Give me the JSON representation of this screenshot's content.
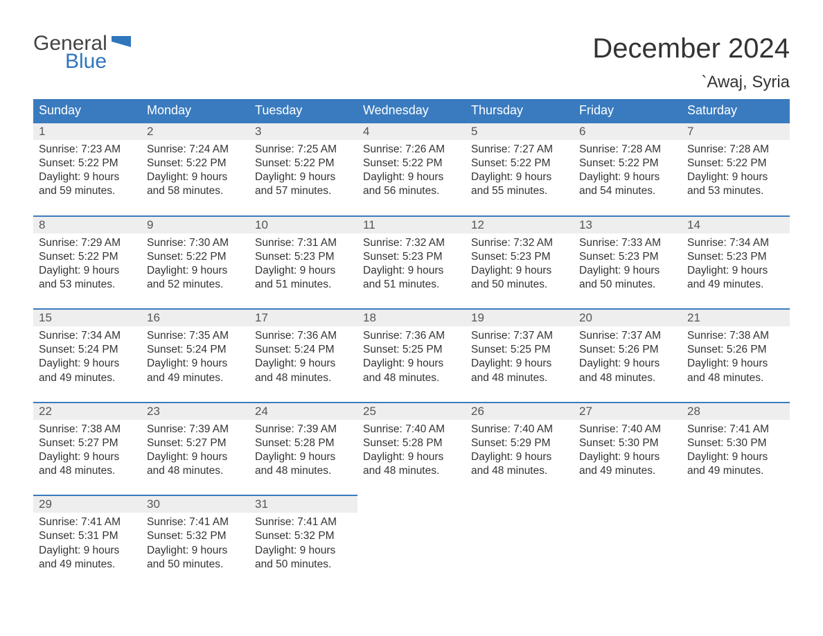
{
  "logo": {
    "line1": "General",
    "line2": "Blue",
    "shape_color": "#2f76bb",
    "text_gray": "#444444"
  },
  "title": "December 2024",
  "location": "`Awaj, Syria",
  "colors": {
    "header_bg": "#3a7bbf",
    "header_text": "#ffffff",
    "daynum_bg": "#eeeeee",
    "daynum_border": "#3a7bbf",
    "body_text": "#333333",
    "page_bg": "#ffffff"
  },
  "font": {
    "family": "Arial",
    "title_size": 40,
    "location_size": 24,
    "header_size": 18,
    "cell_size": 15.5
  },
  "weekdays": [
    "Sunday",
    "Monday",
    "Tuesday",
    "Wednesday",
    "Thursday",
    "Friday",
    "Saturday"
  ],
  "weeks": [
    [
      {
        "n": "1",
        "sr": "Sunrise: 7:23 AM",
        "ss": "Sunset: 5:22 PM",
        "d1": "Daylight: 9 hours",
        "d2": "and 59 minutes."
      },
      {
        "n": "2",
        "sr": "Sunrise: 7:24 AM",
        "ss": "Sunset: 5:22 PM",
        "d1": "Daylight: 9 hours",
        "d2": "and 58 minutes."
      },
      {
        "n": "3",
        "sr": "Sunrise: 7:25 AM",
        "ss": "Sunset: 5:22 PM",
        "d1": "Daylight: 9 hours",
        "d2": "and 57 minutes."
      },
      {
        "n": "4",
        "sr": "Sunrise: 7:26 AM",
        "ss": "Sunset: 5:22 PM",
        "d1": "Daylight: 9 hours",
        "d2": "and 56 minutes."
      },
      {
        "n": "5",
        "sr": "Sunrise: 7:27 AM",
        "ss": "Sunset: 5:22 PM",
        "d1": "Daylight: 9 hours",
        "d2": "and 55 minutes."
      },
      {
        "n": "6",
        "sr": "Sunrise: 7:28 AM",
        "ss": "Sunset: 5:22 PM",
        "d1": "Daylight: 9 hours",
        "d2": "and 54 minutes."
      },
      {
        "n": "7",
        "sr": "Sunrise: 7:28 AM",
        "ss": "Sunset: 5:22 PM",
        "d1": "Daylight: 9 hours",
        "d2": "and 53 minutes."
      }
    ],
    [
      {
        "n": "8",
        "sr": "Sunrise: 7:29 AM",
        "ss": "Sunset: 5:22 PM",
        "d1": "Daylight: 9 hours",
        "d2": "and 53 minutes."
      },
      {
        "n": "9",
        "sr": "Sunrise: 7:30 AM",
        "ss": "Sunset: 5:22 PM",
        "d1": "Daylight: 9 hours",
        "d2": "and 52 minutes."
      },
      {
        "n": "10",
        "sr": "Sunrise: 7:31 AM",
        "ss": "Sunset: 5:23 PM",
        "d1": "Daylight: 9 hours",
        "d2": "and 51 minutes."
      },
      {
        "n": "11",
        "sr": "Sunrise: 7:32 AM",
        "ss": "Sunset: 5:23 PM",
        "d1": "Daylight: 9 hours",
        "d2": "and 51 minutes."
      },
      {
        "n": "12",
        "sr": "Sunrise: 7:32 AM",
        "ss": "Sunset: 5:23 PM",
        "d1": "Daylight: 9 hours",
        "d2": "and 50 minutes."
      },
      {
        "n": "13",
        "sr": "Sunrise: 7:33 AM",
        "ss": "Sunset: 5:23 PM",
        "d1": "Daylight: 9 hours",
        "d2": "and 50 minutes."
      },
      {
        "n": "14",
        "sr": "Sunrise: 7:34 AM",
        "ss": "Sunset: 5:23 PM",
        "d1": "Daylight: 9 hours",
        "d2": "and 49 minutes."
      }
    ],
    [
      {
        "n": "15",
        "sr": "Sunrise: 7:34 AM",
        "ss": "Sunset: 5:24 PM",
        "d1": "Daylight: 9 hours",
        "d2": "and 49 minutes."
      },
      {
        "n": "16",
        "sr": "Sunrise: 7:35 AM",
        "ss": "Sunset: 5:24 PM",
        "d1": "Daylight: 9 hours",
        "d2": "and 49 minutes."
      },
      {
        "n": "17",
        "sr": "Sunrise: 7:36 AM",
        "ss": "Sunset: 5:24 PM",
        "d1": "Daylight: 9 hours",
        "d2": "and 48 minutes."
      },
      {
        "n": "18",
        "sr": "Sunrise: 7:36 AM",
        "ss": "Sunset: 5:25 PM",
        "d1": "Daylight: 9 hours",
        "d2": "and 48 minutes."
      },
      {
        "n": "19",
        "sr": "Sunrise: 7:37 AM",
        "ss": "Sunset: 5:25 PM",
        "d1": "Daylight: 9 hours",
        "d2": "and 48 minutes."
      },
      {
        "n": "20",
        "sr": "Sunrise: 7:37 AM",
        "ss": "Sunset: 5:26 PM",
        "d1": "Daylight: 9 hours",
        "d2": "and 48 minutes."
      },
      {
        "n": "21",
        "sr": "Sunrise: 7:38 AM",
        "ss": "Sunset: 5:26 PM",
        "d1": "Daylight: 9 hours",
        "d2": "and 48 minutes."
      }
    ],
    [
      {
        "n": "22",
        "sr": "Sunrise: 7:38 AM",
        "ss": "Sunset: 5:27 PM",
        "d1": "Daylight: 9 hours",
        "d2": "and 48 minutes."
      },
      {
        "n": "23",
        "sr": "Sunrise: 7:39 AM",
        "ss": "Sunset: 5:27 PM",
        "d1": "Daylight: 9 hours",
        "d2": "and 48 minutes."
      },
      {
        "n": "24",
        "sr": "Sunrise: 7:39 AM",
        "ss": "Sunset: 5:28 PM",
        "d1": "Daylight: 9 hours",
        "d2": "and 48 minutes."
      },
      {
        "n": "25",
        "sr": "Sunrise: 7:40 AM",
        "ss": "Sunset: 5:28 PM",
        "d1": "Daylight: 9 hours",
        "d2": "and 48 minutes."
      },
      {
        "n": "26",
        "sr": "Sunrise: 7:40 AM",
        "ss": "Sunset: 5:29 PM",
        "d1": "Daylight: 9 hours",
        "d2": "and 48 minutes."
      },
      {
        "n": "27",
        "sr": "Sunrise: 7:40 AM",
        "ss": "Sunset: 5:30 PM",
        "d1": "Daylight: 9 hours",
        "d2": "and 49 minutes."
      },
      {
        "n": "28",
        "sr": "Sunrise: 7:41 AM",
        "ss": "Sunset: 5:30 PM",
        "d1": "Daylight: 9 hours",
        "d2": "and 49 minutes."
      }
    ],
    [
      {
        "n": "29",
        "sr": "Sunrise: 7:41 AM",
        "ss": "Sunset: 5:31 PM",
        "d1": "Daylight: 9 hours",
        "d2": "and 49 minutes."
      },
      {
        "n": "30",
        "sr": "Sunrise: 7:41 AM",
        "ss": "Sunset: 5:32 PM",
        "d1": "Daylight: 9 hours",
        "d2": "and 50 minutes."
      },
      {
        "n": "31",
        "sr": "Sunrise: 7:41 AM",
        "ss": "Sunset: 5:32 PM",
        "d1": "Daylight: 9 hours",
        "d2": "and 50 minutes."
      },
      null,
      null,
      null,
      null
    ]
  ]
}
